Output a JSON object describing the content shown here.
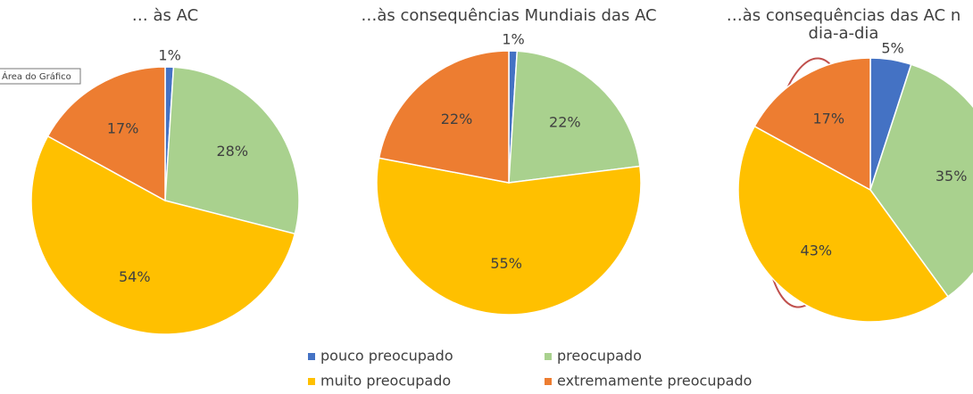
{
  "chart_data": [
    {
      "type": "pie",
      "title": [
        "… às AC"
      ],
      "values": [
        1,
        28,
        54,
        17
      ],
      "value_labels": [
        "1%",
        "28%",
        "54%",
        "17%"
      ]
    },
    {
      "type": "pie",
      "title": [
        "…às consequências Mundiais das AC"
      ],
      "values": [
        1,
        22,
        55,
        22
      ],
      "value_labels": [
        "1%",
        "22%",
        "55%",
        "22%"
      ]
    },
    {
      "type": "pie",
      "title": [
        "…às consequências das AC n",
        "dia-a-dia"
      ],
      "values": [
        5,
        35,
        43,
        17
      ],
      "value_labels": [
        "5%",
        "35%",
        "43%",
        "17%"
      ]
    }
  ],
  "legend": {
    "labels": [
      "pouco preocupado",
      "preocupado",
      "muito preocupado",
      "extremamente preocupado"
    ],
    "colors": [
      "#4472c4",
      "#a9d18e",
      "#ffc000",
      "#ed7d31"
    ]
  },
  "tooltip": "Área do Gráfico"
}
